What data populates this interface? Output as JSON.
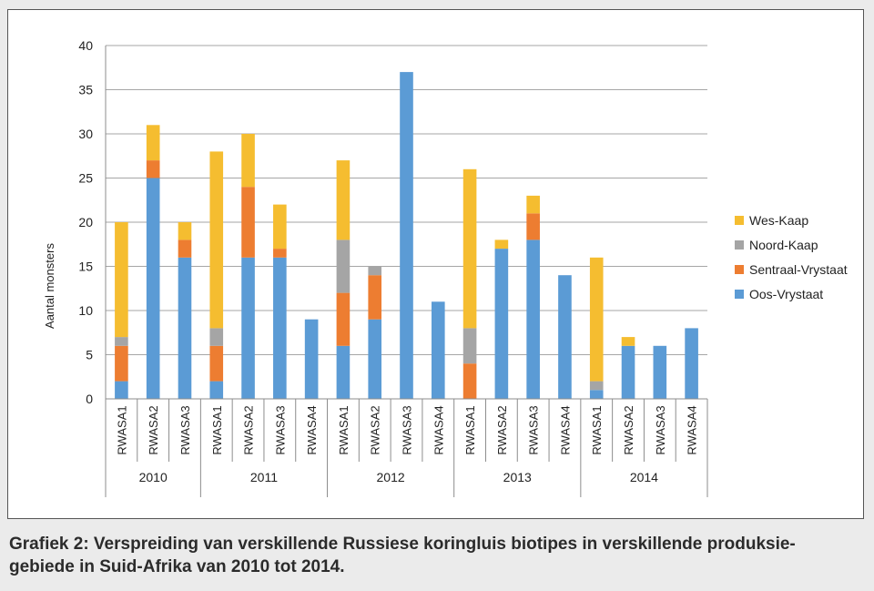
{
  "caption": "Grafiek 2: Verspreiding van verskillende Russiese koringluis biotipes in verskillende produksie-gebiede in Suid-Afrika van 2010 tot 2014.",
  "caption_lines": [
    "Grafiek 2: Verspreiding van verskillende Russiese koringluis biotipes in verskillende produksie-",
    "gebiede in Suid-Afrika van 2010 tot 2014."
  ],
  "chart_data": {
    "type": "bar",
    "stacked": true,
    "title": "",
    "xlabel": "",
    "ylabel": "Aantal monsters",
    "ylim": [
      0,
      40
    ],
    "yticks": [
      0,
      5,
      10,
      15,
      20,
      25,
      30,
      35,
      40
    ],
    "grid": true,
    "legend_position": "right",
    "groups": [
      {
        "label": "2010",
        "categories": [
          "RWASA1",
          "RWASA2",
          "RWASA3"
        ]
      },
      {
        "label": "2011",
        "categories": [
          "RWASA1",
          "RWASA2",
          "RWASA3",
          "RWASA4"
        ]
      },
      {
        "label": "2012",
        "categories": [
          "RWASA1",
          "RWASA2",
          "RWASA3",
          "RWASA4"
        ]
      },
      {
        "label": "2013",
        "categories": [
          "RWASA1",
          "RWASA2",
          "RWASA3",
          "RWASA4"
        ]
      },
      {
        "label": "2014",
        "categories": [
          "RWASA1",
          "RWASA2",
          "RWASA3",
          "RWASA4"
        ]
      }
    ],
    "series": [
      {
        "name": "Oos-Vrystaat",
        "color": "#5b9bd5",
        "values": [
          2,
          25,
          16,
          2,
          16,
          16,
          9,
          6,
          9,
          37,
          11,
          0,
          17,
          18,
          14,
          1,
          6,
          6,
          8
        ]
      },
      {
        "name": "Sentraal-Vrystaat",
        "color": "#ed7d31",
        "values": [
          4,
          2,
          2,
          4,
          8,
          1,
          0,
          6,
          5,
          0,
          0,
          4,
          0,
          3,
          0,
          0,
          0,
          0,
          0
        ]
      },
      {
        "name": "Noord-Kaap",
        "color": "#a5a5a5",
        "values": [
          1,
          0,
          0,
          2,
          0,
          0,
          0,
          6,
          1,
          0,
          0,
          4,
          0,
          0,
          0,
          1,
          0,
          0,
          0
        ]
      },
      {
        "name": "Wes-Kaap",
        "color": "#f5bd30",
        "values": [
          13,
          4,
          2,
          20,
          6,
          5,
          0,
          9,
          0,
          0,
          0,
          18,
          1,
          2,
          0,
          14,
          1,
          0,
          0
        ]
      }
    ],
    "legend_order": [
      "Wes-Kaap",
      "Noord-Kaap",
      "Sentraal-Vrystaat",
      "Oos-Vrystaat"
    ]
  }
}
